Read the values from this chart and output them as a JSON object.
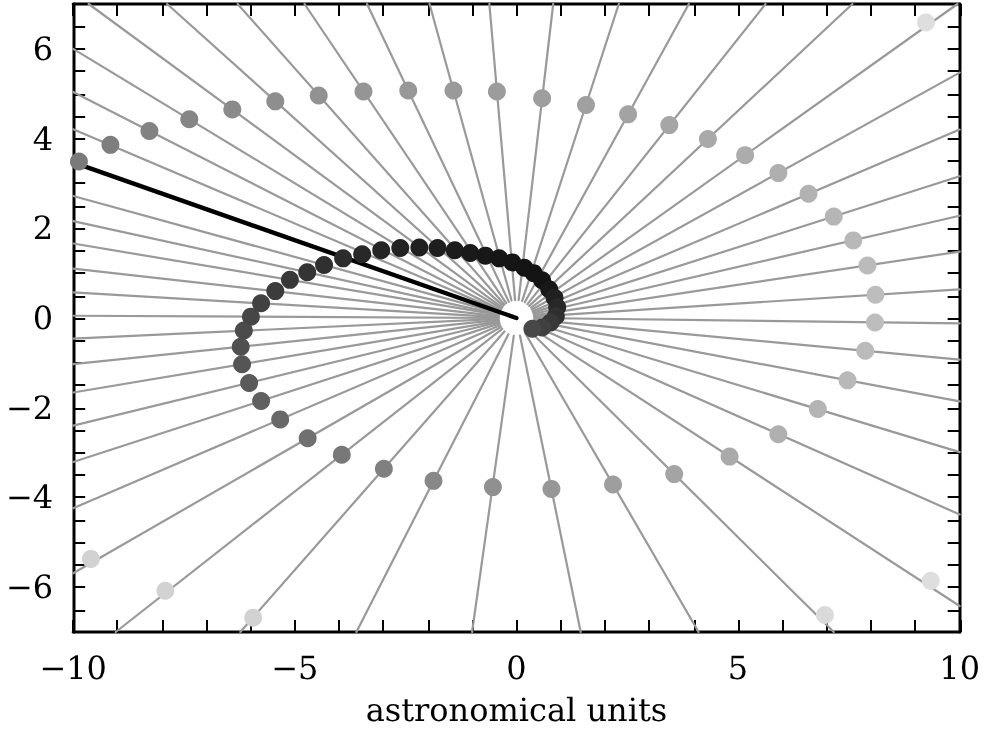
{
  "chart_data": {
    "type": "scatter",
    "xlabel": "astronomical units",
    "xlim": [
      -10,
      10
    ],
    "ylim": [
      -7,
      7
    ],
    "xticks": [
      -10,
      {
        "value": -9,
        "label": null
      },
      {
        "value": -8,
        "label": null
      },
      {
        "value": -7,
        "label": null
      },
      {
        "value": -6,
        "label": null
      },
      -5,
      {
        "value": -4,
        "label": null
      },
      {
        "value": -3,
        "label": null
      },
      {
        "value": -2,
        "label": null
      },
      {
        "value": -1,
        "label": null
      },
      0,
      {
        "value": 1,
        "label": null
      },
      {
        "value": 2,
        "label": null
      },
      {
        "value": 3,
        "label": null
      },
      {
        "value": 4,
        "label": null
      },
      5,
      {
        "value": 6,
        "label": null
      },
      {
        "value": 7,
        "label": null
      },
      {
        "value": 8,
        "label": null
      },
      {
        "value": 9,
        "label": null
      },
      10
    ],
    "yticks": [
      {
        "value": -6.5,
        "label": null
      },
      -6,
      {
        "value": -5.5,
        "label": null
      },
      {
        "value": -5,
        "label": null
      },
      {
        "value": -4.5,
        "label": null
      },
      -4,
      {
        "value": -3.5,
        "label": null
      },
      {
        "value": -3,
        "label": null
      },
      {
        "value": -2.5,
        "label": null
      },
      -2,
      {
        "value": -1.5,
        "label": null
      },
      {
        "value": -1,
        "label": null
      },
      {
        "value": -0.5,
        "label": null
      },
      0,
      {
        "value": 0.5,
        "label": null
      },
      {
        "value": 1,
        "label": null
      },
      {
        "value": 1.5,
        "label": null
      },
      2,
      {
        "value": 2.5,
        "label": null
      },
      {
        "value": 3,
        "label": null
      },
      {
        "value": 3.5,
        "label": null
      },
      4,
      {
        "value": 4.5,
        "label": null
      },
      {
        "value": 5,
        "label": null
      },
      {
        "value": 5.5,
        "label": null
      },
      6,
      {
        "value": 6.5,
        "label": null
      }
    ],
    "marker": "circle",
    "series": [
      {
        "type": "line",
        "marker": "none",
        "color": "#999999",
        "x": [
          -0.37,
          -10
        ],
        "values": [
          0.16,
          4.21
        ]
      },
      {
        "type": "line",
        "marker": "none",
        "color": "#999999",
        "x": [
          -0.36,
          -10
        ],
        "values": [
          0.18,
          5.04
        ]
      },
      {
        "type": "line",
        "marker": "none",
        "color": "#999999",
        "x": [
          -0.34,
          -10
        ],
        "values": [
          0.21,
          6.0
        ]
      },
      {
        "type": "line",
        "marker": "none",
        "color": "#999999",
        "x": [
          -0.32,
          -9.65
        ],
        "values": [
          0.23,
          7
        ]
      },
      {
        "type": "line",
        "marker": "none",
        "color": "#999999",
        "x": [
          -0.3,
          -7.88
        ],
        "values": [
          0.27,
          7
        ]
      },
      {
        "type": "line",
        "marker": "none",
        "color": "#999999",
        "x": [
          -0.27,
          -6.29
        ],
        "values": [
          0.3,
          7
        ]
      },
      {
        "type": "line",
        "marker": "none",
        "color": "#999999",
        "x": [
          -0.23,
          -4.78
        ],
        "values": [
          0.33,
          7
        ]
      },
      {
        "type": "line",
        "marker": "none",
        "color": "#999999",
        "x": [
          -0.17,
          -3.37
        ],
        "values": [
          0.36,
          7
        ]
      },
      {
        "type": "line",
        "marker": "none",
        "color": "#999999",
        "x": [
          -0.11,
          -1.96
        ],
        "values": [
          0.39,
          7
        ]
      },
      {
        "type": "line",
        "marker": "none",
        "color": "#999999",
        "x": [
          -0.03,
          -0.61
        ],
        "values": [
          0.4,
          7
        ]
      },
      {
        "type": "line",
        "marker": "none",
        "color": "#999999",
        "x": [
          0.05,
          0.83
        ],
        "values": [
          0.4,
          7
        ]
      },
      {
        "type": "line",
        "marker": "none",
        "color": "#999999",
        "x": [
          0.13,
          2.31
        ],
        "values": [
          0.38,
          7
        ]
      },
      {
        "type": "line",
        "marker": "none",
        "color": "#999999",
        "x": [
          0.19,
          3.89
        ],
        "values": [
          0.35,
          7
        ]
      },
      {
        "type": "line",
        "marker": "none",
        "color": "#999999",
        "x": [
          0.25,
          5.62
        ],
        "values": [
          0.31,
          7
        ]
      },
      {
        "type": "line",
        "marker": "none",
        "color": "#999999",
        "x": [
          0.29,
          7.58
        ],
        "values": [
          0.27,
          7
        ]
      },
      {
        "type": "line",
        "marker": "none",
        "color": "#999999",
        "x": [
          0.33,
          9.95
        ],
        "values": [
          0.23,
          7
        ]
      },
      {
        "type": "line",
        "marker": "none",
        "color": "#999999",
        "x": [
          0.35,
          10
        ],
        "values": [
          0.19,
          5.47
        ]
      },
      {
        "type": "line",
        "marker": "none",
        "color": "#999999",
        "x": [
          0.37,
          10
        ],
        "values": [
          0.15,
          4.2
        ]
      },
      {
        "type": "line",
        "marker": "none",
        "color": "#999999",
        "x": [
          0.38,
          10
        ],
        "values": [
          0.12,
          3.16
        ]
      },
      {
        "type": "line",
        "marker": "none",
        "color": "#999999",
        "x": [
          0.39,
          10
        ],
        "values": [
          0.09,
          2.28
        ]
      },
      {
        "type": "line",
        "marker": "none",
        "color": "#999999",
        "x": [
          0.4,
          10
        ],
        "values": [
          0.06,
          1.48
        ]
      },
      {
        "type": "line",
        "marker": "none",
        "color": "#999999",
        "x": [
          0.4,
          10
        ],
        "values": [
          0.03,
          0.64
        ]
      },
      {
        "type": "line",
        "marker": "none",
        "color": "#999999",
        "x": [
          0.4,
          10
        ],
        "values": [
          0.0,
          -0.12
        ]
      },
      {
        "type": "line",
        "marker": "none",
        "color": "#999999",
        "x": [
          0.4,
          10
        ],
        "values": [
          -0.04,
          -0.93
        ]
      },
      {
        "type": "line",
        "marker": "none",
        "color": "#999999",
        "x": [
          0.39,
          10
        ],
        "values": [
          -0.07,
          -1.86
        ]
      },
      {
        "type": "line",
        "marker": "none",
        "color": "#999999",
        "x": [
          0.38,
          10
        ],
        "values": [
          -0.11,
          -2.99
        ]
      },
      {
        "type": "line",
        "marker": "none",
        "color": "#999999",
        "x": [
          0.37,
          10
        ],
        "values": [
          -0.16,
          -4.38
        ]
      },
      {
        "type": "line",
        "marker": "none",
        "color": "#999999",
        "x": [
          0.34,
          10
        ],
        "values": [
          -0.22,
          -6.42
        ]
      },
      {
        "type": "line",
        "marker": "none",
        "color": "#999999",
        "x": [
          0.29,
          7.16
        ],
        "values": [
          -0.28,
          -7
        ]
      },
      {
        "type": "line",
        "marker": "none",
        "color": "#999999",
        "x": [
          0.2,
          4.11
        ],
        "values": [
          -0.34,
          -7
        ]
      },
      {
        "type": "line",
        "marker": "none",
        "color": "#999999",
        "x": [
          0.08,
          1.45
        ],
        "values": [
          -0.39,
          -7
        ]
      },
      {
        "type": "line",
        "marker": "none",
        "color": "#999999",
        "x": [
          -0.06,
          -1.0
        ],
        "values": [
          -0.4,
          -7
        ]
      },
      {
        "type": "line",
        "marker": "none",
        "color": "#999999",
        "x": [
          -0.18,
          -3.61
        ],
        "values": [
          -0.36,
          -7
        ]
      },
      {
        "type": "line",
        "marker": "none",
        "color": "#999999",
        "x": [
          -0.27,
          -6.23
        ],
        "values": [
          -0.3,
          -7
        ]
      },
      {
        "type": "line",
        "marker": "none",
        "color": "#999999",
        "x": [
          -0.32,
          -9.04
        ],
        "values": [
          -0.24,
          -7
        ]
      },
      {
        "type": "line",
        "marker": "none",
        "color": "#999999",
        "x": [
          -0.35,
          -10
        ],
        "values": [
          -0.2,
          -5.69
        ]
      },
      {
        "type": "line",
        "marker": "none",
        "color": "#999999",
        "x": [
          -0.37,
          -10
        ],
        "values": [
          -0.16,
          -4.24
        ]
      },
      {
        "type": "line",
        "marker": "none",
        "color": "#999999",
        "x": [
          -0.38,
          -10
        ],
        "values": [
          -0.12,
          -3.21
        ]
      },
      {
        "type": "line",
        "marker": "none",
        "color": "#999999",
        "x": [
          -0.39,
          -10
        ],
        "values": [
          -0.09,
          -2.4
        ]
      },
      {
        "type": "line",
        "marker": "none",
        "color": "#999999",
        "x": [
          -0.39,
          -10
        ],
        "values": [
          -0.07,
          -1.66
        ]
      },
      {
        "type": "line",
        "marker": "none",
        "color": "#999999",
        "x": [
          -0.4,
          -10
        ],
        "values": [
          -0.04,
          -1.03
        ]
      },
      {
        "type": "line",
        "marker": "none",
        "color": "#999999",
        "x": [
          -0.4,
          -10
        ],
        "values": [
          -0.02,
          -0.46
        ]
      },
      {
        "type": "line",
        "marker": "none",
        "color": "#999999",
        "x": [
          -0.4,
          -10
        ],
        "values": [
          0.0,
          0.05
        ]
      },
      {
        "type": "line",
        "marker": "none",
        "color": "#999999",
        "x": [
          -0.4,
          -10
        ],
        "values": [
          0.02,
          0.57
        ]
      },
      {
        "type": "line",
        "marker": "none",
        "color": "#999999",
        "x": [
          -0.4,
          -10
        ],
        "values": [
          0.04,
          1.1
        ]
      },
      {
        "type": "line",
        "marker": "none",
        "color": "#999999",
        "x": [
          -0.39,
          -10
        ],
        "values": [
          0.07,
          1.66
        ]
      },
      {
        "type": "line",
        "marker": "none",
        "color": "#999999",
        "x": [
          -0.39,
          -10
        ],
        "values": [
          0.08,
          2.16
        ]
      },
      {
        "type": "line",
        "marker": "none",
        "color": "#999999",
        "x": [
          -0.39,
          -10
        ],
        "values": [
          0.11,
          2.72
        ]
      },
      {
        "type": "line",
        "marker": "none",
        "color": "#000000",
        "x": [
          0,
          -10
        ],
        "values": [
          0,
          3.47
        ]
      },
      {
        "x": [
          -9.87,
          -9.16,
          -8.28,
          -7.38,
          -6.41,
          -5.44,
          -4.46,
          -3.45,
          -2.44,
          -1.42,
          -0.44,
          0.58,
          1.57,
          2.52,
          3.45,
          4.32,
          5.16,
          5.91,
          6.59,
          7.16,
          7.6,
          7.92,
          8.1,
          8.09,
          7.87,
          7.47,
          6.8,
          5.91,
          4.81,
          3.56,
          2.18,
          0.79,
          -0.53,
          -1.87,
          -2.99,
          -3.94,
          -4.71,
          -5.33,
          9.24,
          9.35,
          6.96,
          null,
          -9.6,
          -7.92,
          -5.94,
          null,
          -5.76,
          -6.03,
          -6.19,
          -6.22,
          -6.15,
          -5.99,
          -5.76,
          -5.44,
          -5.11,
          -4.72,
          -4.34,
          -3.91,
          -3.48,
          -3.05,
          -2.62,
          -2.19,
          -1.78,
          -1.39,
          -1.04,
          -0.7,
          -0.39,
          -0.09,
          0.18,
          0.39,
          0.58,
          0.74,
          0.86,
          0.92,
          0.89,
          0.77,
          0.58,
          0.36
        ],
        "values": [
          3.49,
          3.86,
          4.17,
          4.43,
          4.65,
          4.83,
          4.96,
          5.05,
          5.07,
          5.07,
          5.05,
          4.9,
          4.75,
          4.54,
          4.3,
          3.99,
          3.63,
          3.23,
          2.77,
          2.26,
          1.73,
          1.17,
          0.52,
          -0.1,
          -0.73,
          -1.39,
          -2.03,
          -2.59,
          -3.09,
          -3.48,
          -3.71,
          -3.81,
          -3.77,
          -3.63,
          -3.36,
          -3.05,
          -2.68,
          -2.26,
          6.59,
          -5.86,
          -6.62,
          null,
          -5.37,
          -6.08,
          -6.68,
          null,
          -1.85,
          -1.45,
          -1.03,
          -0.64,
          -0.28,
          0.03,
          0.33,
          0.6,
          0.85,
          1.02,
          1.18,
          1.33,
          1.42,
          1.51,
          1.56,
          1.57,
          1.56,
          1.51,
          1.45,
          1.39,
          1.33,
          1.24,
          1.12,
          1.0,
          0.84,
          0.64,
          0.45,
          0.24,
          0.04,
          -0.1,
          -0.21,
          -0.24
        ],
        "colors": [
          "#7a7a7a",
          "#7e7e7e",
          "#828282",
          "#868686",
          "#8a8a8a",
          "#8e8e8e",
          "#929292",
          "#959595",
          "#989898",
          "#9a9a9a",
          "#9c9c9c",
          "#9e9e9e",
          "#a0a0a0",
          "#a3a3a3",
          "#a6a6a6",
          "#a9a9a9",
          "#acacac",
          "#afafaf",
          "#b2b2b2",
          "#b5b5b5",
          "#b8b8b8",
          "#bbbbbb",
          "#bdbdbd",
          "#bdbdbd",
          "#bbbbbb",
          "#b8b8b8",
          "#b4b4b4",
          "#b0b0b0",
          "#aaaaaa",
          "#a4a4a4",
          "#9e9e9e",
          "#979797",
          "#909090",
          "#888888",
          "#808080",
          "#787878",
          "#707070",
          "#686868",
          "#dedede",
          "#dedede",
          "#dadada",
          "#d6d6d6",
          "#d2d2d2",
          "#d2d2d2",
          "#d2d2d2",
          "#d2d2d2",
          "#606060",
          "#5a5a5a",
          "#555555",
          "#505050",
          "#4b4b4b",
          "#464646",
          "#414141",
          "#3c3c3c",
          "#383838",
          "#343434",
          "#303030",
          "#2c2c2c",
          "#282828",
          "#252525",
          "#222222",
          "#202020",
          "#1e1e1e",
          "#1c1c1c",
          "#1a1a1a",
          "#181818",
          "#161616",
          "#151515",
          "#141414",
          "#141414",
          "#141414",
          "#181818",
          "#202020",
          "#282828",
          "#303030",
          "#383838",
          "#404040",
          "#484848"
        ]
      }
    ]
  }
}
